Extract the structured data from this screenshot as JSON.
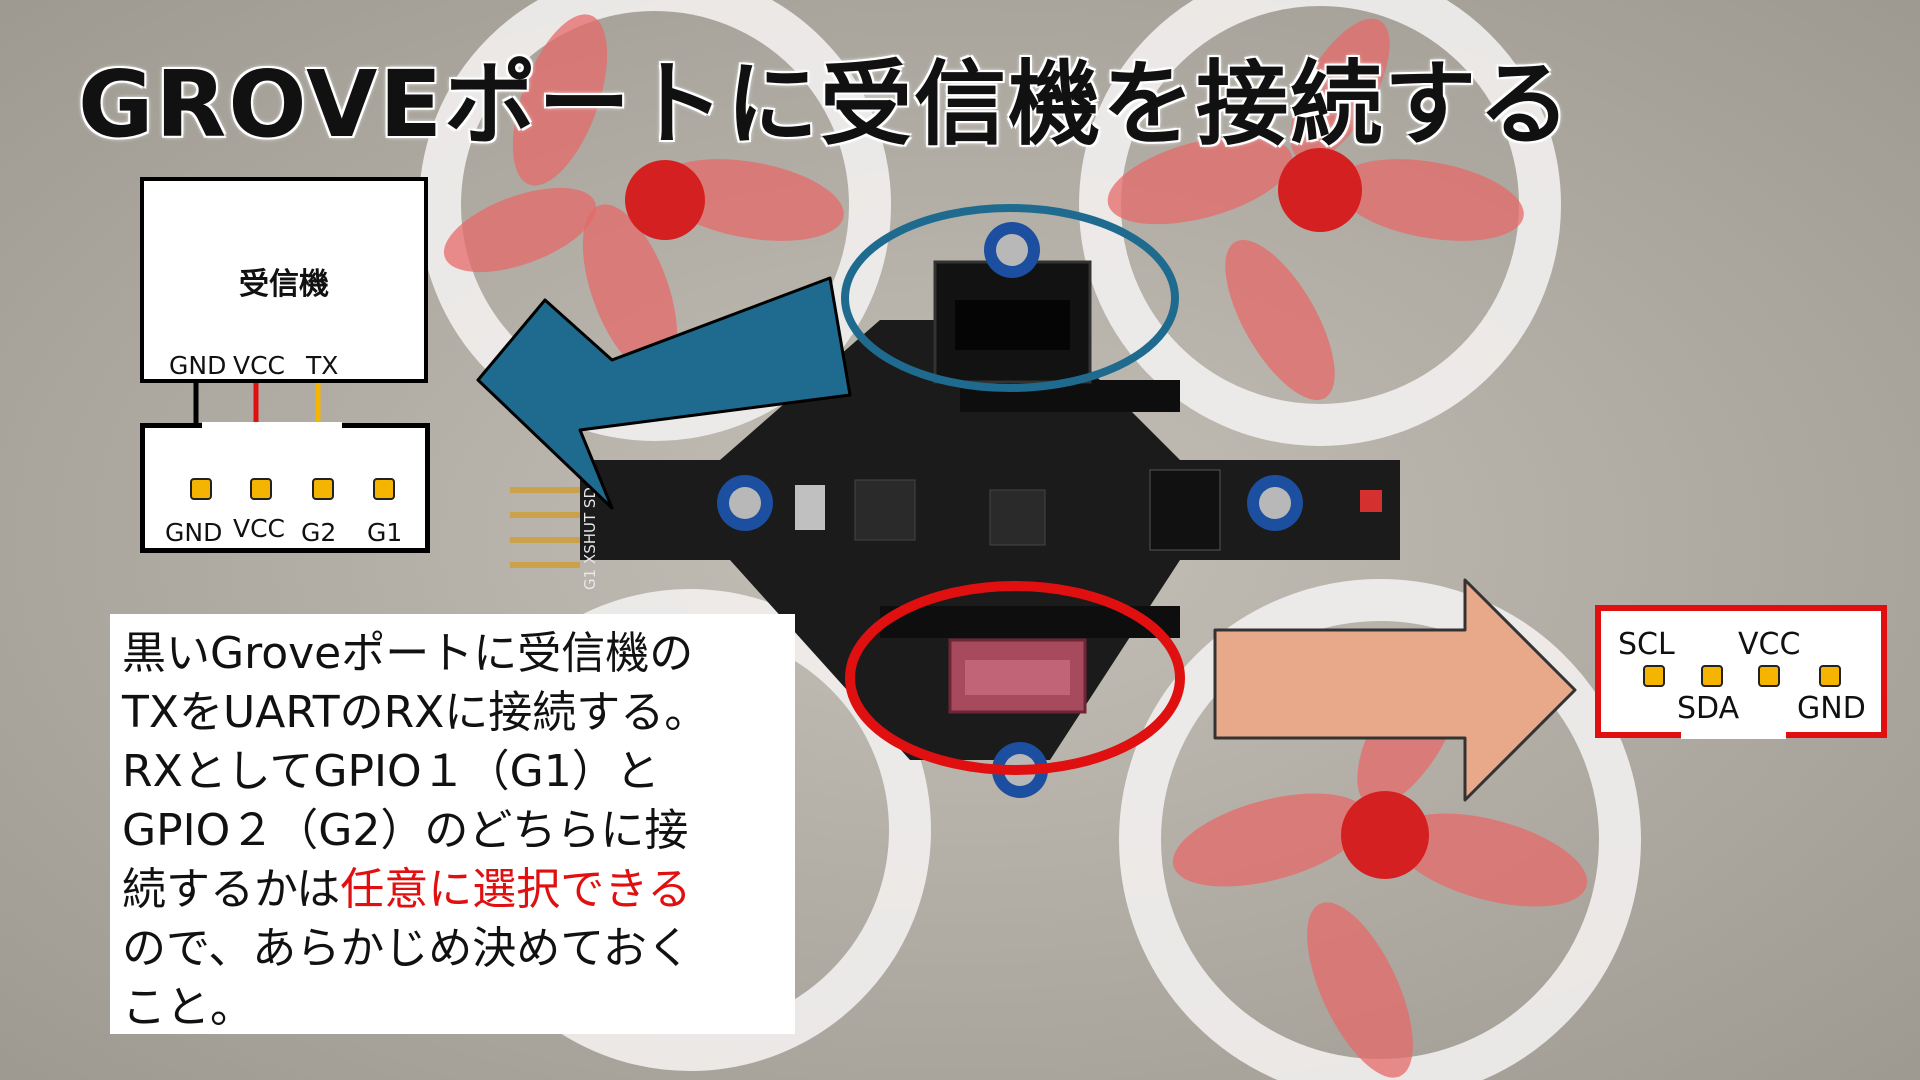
{
  "title": "GROVEポートに受信機を接続する",
  "receiver": {
    "label": "受信機",
    "pins": [
      "GND",
      "VCC",
      "TX"
    ]
  },
  "connector": {
    "pins": [
      "GND",
      "VCC",
      "G2",
      "G1"
    ]
  },
  "description": {
    "lines": [
      "黒いGroveポートに受信機の",
      "TXをUARTのRXに接続する。",
      "RXとしてGPIO１（G1）と",
      "GPIO２（G2）のどちらに接",
      "続するかは"
    ],
    "highlight": "任意に選択できる",
    "tail": [
      "ので、あらかじめ決めておく",
      "こと。"
    ]
  },
  "i2c": {
    "top_labels": [
      "SCL",
      "VCC"
    ],
    "bottom_labels": [
      "SDA",
      "GND"
    ]
  },
  "board": {
    "silkscreen": "G1 XSHUT SDA"
  },
  "colors": {
    "gnd_wire": "#000000",
    "vcc_wire": "#e01010",
    "tx_wire": "#f5b400",
    "pad": "#f5b400",
    "left_arrow": "#1e6b8f",
    "right_arrow": "#e8a88a",
    "black_port_ring": "#1e6b8f",
    "red_port_ring": "#e01010",
    "highlight_text": "#e01010"
  }
}
